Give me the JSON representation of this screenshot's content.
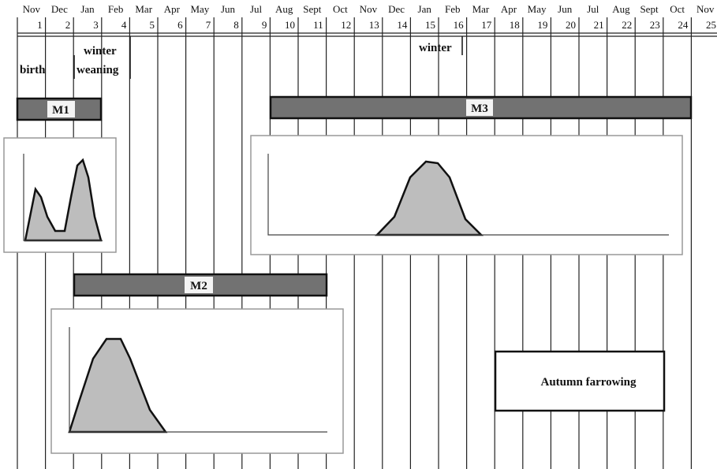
{
  "header": {
    "months": [
      "Nov",
      "Dec",
      "Jan",
      "Feb",
      "Mar",
      "Apr",
      "May",
      "Jun",
      "Jul",
      "Aug",
      "Sept",
      "Oct",
      "Nov",
      "Dec",
      "Jan",
      "Feb",
      "Mar",
      "Apr",
      "May",
      "Jun",
      "Jul",
      "Aug",
      "Sept",
      "Oct",
      "Nov"
    ],
    "numbers": [
      1,
      2,
      3,
      4,
      5,
      6,
      7,
      8,
      9,
      10,
      11,
      12,
      13,
      14,
      15,
      16,
      17,
      18,
      19,
      20,
      21,
      22,
      23,
      24,
      25
    ]
  },
  "annotations": {
    "winter_first": "winter",
    "weaning": "weaning",
    "birth": "birth",
    "winter_second": "winter"
  },
  "bars": [
    {
      "label": "M1"
    },
    {
      "label": "M2"
    },
    {
      "label": "M3"
    }
  ],
  "box": {
    "label": "Autumn farrowing"
  }
}
